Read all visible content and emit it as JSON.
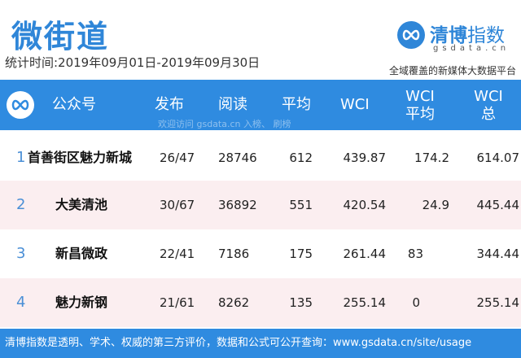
{
  "title": "微街道",
  "period": "统计时间:2019年09月01日-2019年09月30日",
  "brand": {
    "name_main": "清博",
    "name_sub": "指数",
    "url": "gsdata.cn",
    "slogan": "全域覆盖的新媒体大数据平台",
    "color": "#2f86d8"
  },
  "header": {
    "columns": [
      "公众号",
      "发布",
      "阅读",
      "平均",
      "WCI",
      "WCI\n平均",
      "WCI\n总"
    ],
    "watermark": "欢迎访问 gsdata.cn 入榜、  刷榜"
  },
  "rows": [
    {
      "rank": "1",
      "name": "首善街区魅力新城",
      "publish": "26/47",
      "read": "28746",
      "avg": "612",
      "wci": "439.87",
      "wci_avg": "174.2",
      "wci_total": "614.07"
    },
    {
      "rank": "2",
      "name": "大美清池",
      "publish": "30/67",
      "read": "36892",
      "avg": "551",
      "wci": "420.54",
      "wci_avg": "24.9",
      "wci_total": "445.44"
    },
    {
      "rank": "3",
      "name": "新昌微政",
      "publish": "22/41",
      "read": "7186",
      "avg": "175",
      "wci": "261.44",
      "wci_avg": "83",
      "wci_total": "344.44"
    },
    {
      "rank": "4",
      "name": "魅力新钢",
      "publish": "21/61",
      "read": "8262",
      "avg": "135",
      "wci": "255.14",
      "wci_avg": "0",
      "wci_total": "255.14"
    }
  ],
  "footer": "清博指数是透明、学术、权威的第三方评价，数据和公式可公开查询：www.gsdata.cn/site/usage"
}
